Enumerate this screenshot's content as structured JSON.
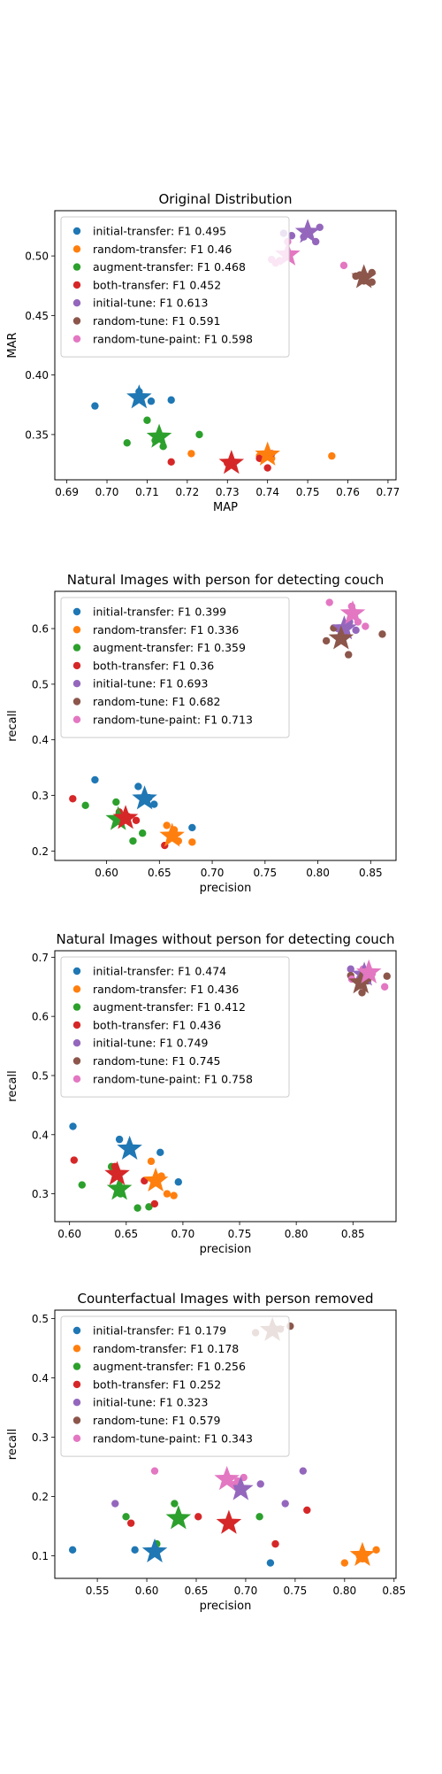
{
  "colors": [
    "#1f77b4",
    "#ff7f0e",
    "#2ca02c",
    "#d62728",
    "#9467bd",
    "#8c564b",
    "#e377c2"
  ],
  "chart_data": [
    {
      "type": "scatter",
      "title": "Original Distribution",
      "xlabel": "MAP",
      "ylabel": "MAR",
      "xlim": [
        0.687,
        0.772
      ],
      "ylim": [
        0.312,
        0.538
      ],
      "xticks": [
        0.69,
        0.7,
        0.71,
        0.72,
        0.73,
        0.74,
        0.75,
        0.76,
        0.77
      ],
      "xtick_labels": [
        "0.69",
        "0.70",
        "0.71",
        "0.72",
        "0.73",
        "0.74",
        "0.75",
        "0.76",
        "0.77"
      ],
      "yticks": [
        0.35,
        0.4,
        0.45,
        0.5
      ],
      "ytick_labels": [
        "0.35",
        "0.40",
        "0.45",
        "0.50"
      ],
      "legend_position": "upper-left",
      "series": [
        {
          "name": "initial-transfer: F1 0.495",
          "points": [
            [
              0.697,
              0.374
            ],
            [
              0.708,
              0.386
            ],
            [
              0.708,
              0.383
            ],
            [
              0.716,
              0.379
            ],
            [
              0.711,
              0.378
            ]
          ],
          "mean": [
            0.708,
            0.381
          ]
        },
        {
          "name": "random-transfer: F1 0.46",
          "points": [
            [
              0.721,
              0.334
            ],
            [
              0.74,
              0.334
            ],
            [
              0.741,
              0.33
            ],
            [
              0.756,
              0.332
            ],
            [
              0.738,
              0.332
            ]
          ],
          "mean": [
            0.74,
            0.333
          ]
        },
        {
          "name": "augment-transfer: F1 0.468",
          "points": [
            [
              0.705,
              0.343
            ],
            [
              0.71,
              0.362
            ],
            [
              0.714,
              0.34
            ],
            [
              0.723,
              0.35
            ],
            [
              0.712,
              0.345
            ]
          ],
          "mean": [
            0.713,
            0.348
          ]
        },
        {
          "name": "both-transfer: F1 0.452",
          "points": [
            [
              0.716,
              0.327
            ],
            [
              0.738,
              0.33
            ],
            [
              0.74,
              0.322
            ],
            [
              0.741,
              0.334
            ],
            [
              0.73,
              0.326
            ]
          ],
          "mean": [
            0.731,
            0.326
          ]
        },
        {
          "name": "initial-tune: F1 0.613",
          "points": [
            [
              0.744,
              0.519
            ],
            [
              0.753,
              0.524
            ],
            [
              0.752,
              0.512
            ],
            [
              0.749,
              0.516
            ],
            [
              0.746,
              0.517
            ]
          ],
          "mean": [
            0.75,
            0.52
          ]
        },
        {
          "name": "random-tune: F1 0.591",
          "points": [
            [
              0.764,
              0.479
            ],
            [
              0.766,
              0.478
            ],
            [
              0.762,
              0.483
            ],
            [
              0.766,
              0.486
            ],
            [
              0.763,
              0.484
            ]
          ],
          "mean": [
            0.764,
            0.482
          ]
        },
        {
          "name": "random-tune-paint: F1 0.598",
          "points": [
            [
              0.742,
              0.494
            ],
            [
              0.759,
              0.492
            ],
            [
              0.743,
              0.496
            ],
            [
              0.745,
              0.512
            ],
            [
              0.741,
              0.497
            ]
          ],
          "mean": [
            0.745,
            0.501
          ]
        }
      ]
    },
    {
      "type": "scatter",
      "title": "Natural Images with person for detecting couch",
      "xlabel": "precision",
      "ylabel": "recall",
      "xlim": [
        0.551,
        0.874
      ],
      "ylim": [
        0.183,
        0.667
      ],
      "xticks": [
        0.6,
        0.65,
        0.7,
        0.75,
        0.8,
        0.85
      ],
      "xtick_labels": [
        "0.60",
        "0.65",
        "0.70",
        "0.75",
        "0.80",
        "0.85"
      ],
      "yticks": [
        0.2,
        0.3,
        0.4,
        0.5,
        0.6
      ],
      "ytick_labels": [
        "0.2",
        "0.3",
        "0.4",
        "0.5",
        "0.6"
      ],
      "legend_position": "upper-left",
      "series": [
        {
          "name": "initial-transfer: F1 0.399",
          "points": [
            [
              0.589,
              0.328
            ],
            [
              0.63,
              0.316
            ],
            [
              0.645,
              0.284
            ],
            [
              0.681,
              0.242
            ],
            [
              0.64,
              0.296
            ]
          ],
          "mean": [
            0.636,
            0.294
          ]
        },
        {
          "name": "random-transfer: F1 0.336",
          "points": [
            [
              0.657,
              0.246
            ],
            [
              0.668,
              0.218
            ],
            [
              0.681,
              0.216
            ],
            [
              0.664,
              0.238
            ],
            [
              0.66,
              0.227
            ]
          ],
          "mean": [
            0.662,
            0.227
          ]
        },
        {
          "name": "augment-transfer: F1 0.359",
          "points": [
            [
              0.58,
              0.282
            ],
            [
              0.609,
              0.288
            ],
            [
              0.625,
              0.218
            ],
            [
              0.634,
              0.232
            ],
            [
              0.612,
              0.262
            ]
          ],
          "mean": [
            0.611,
            0.257
          ]
        },
        {
          "name": "both-transfer: F1 0.36",
          "points": [
            [
              0.568,
              0.294
            ],
            [
              0.612,
              0.27
            ],
            [
              0.628,
              0.255
            ],
            [
              0.655,
              0.21
            ],
            [
              0.62,
              0.262
            ]
          ],
          "mean": [
            0.618,
            0.259
          ]
        },
        {
          "name": "initial-tune: F1 0.693",
          "points": [
            [
              0.819,
              0.6
            ],
            [
              0.836,
              0.597
            ],
            [
              0.83,
              0.612
            ],
            [
              0.822,
              0.59
            ],
            [
              0.828,
              0.605
            ]
          ],
          "mean": [
            0.825,
            0.6
          ]
        },
        {
          "name": "random-tune: F1 0.682",
          "points": [
            [
              0.808,
              0.578
            ],
            [
              0.815,
              0.601
            ],
            [
              0.829,
              0.553
            ],
            [
              0.861,
              0.59
            ],
            [
              0.822,
              0.585
            ]
          ],
          "mean": [
            0.822,
            0.582
          ]
        },
        {
          "name": "random-tune-paint: F1 0.713",
          "points": [
            [
              0.811,
              0.647
            ],
            [
              0.845,
              0.604
            ],
            [
              0.832,
              0.64
            ],
            [
              0.838,
              0.612
            ],
            [
              0.833,
              0.627
            ]
          ],
          "mean": [
            0.833,
            0.627
          ]
        }
      ]
    },
    {
      "type": "scatter",
      "title": "Natural Images without person for detecting couch",
      "xlabel": "precision",
      "ylabel": "recall",
      "xlim": [
        0.587,
        0.888
      ],
      "ylim": [
        0.253,
        0.711
      ],
      "xticks": [
        0.6,
        0.65,
        0.7,
        0.75,
        0.8,
        0.85
      ],
      "xtick_labels": [
        "0.60",
        "0.65",
        "0.70",
        "0.75",
        "0.80",
        "0.85"
      ],
      "yticks": [
        0.3,
        0.4,
        0.5,
        0.6,
        0.7
      ],
      "ytick_labels": [
        "0.3",
        "0.4",
        "0.5",
        "0.6",
        "0.7"
      ],
      "legend_position": "upper-left",
      "series": [
        {
          "name": "initial-transfer: F1 0.474",
          "points": [
            [
              0.603,
              0.414
            ],
            [
              0.644,
              0.392
            ],
            [
              0.68,
              0.37
            ],
            [
              0.696,
              0.32
            ],
            [
              0.653,
              0.38
            ]
          ],
          "mean": [
            0.653,
            0.376
          ]
        },
        {
          "name": "random-transfer: F1 0.436",
          "points": [
            [
              0.672,
              0.355
            ],
            [
              0.686,
              0.3
            ],
            [
              0.692,
              0.297
            ],
            [
              0.681,
              0.33
            ],
            [
              0.676,
              0.322
            ]
          ],
          "mean": [
            0.676,
            0.322
          ]
        },
        {
          "name": "augment-transfer: F1 0.412",
          "points": [
            [
              0.611,
              0.315
            ],
            [
              0.637,
              0.346
            ],
            [
              0.66,
              0.276
            ],
            [
              0.67,
              0.278
            ],
            [
              0.645,
              0.3
            ]
          ],
          "mean": [
            0.644,
            0.308
          ]
        },
        {
          "name": "both-transfer: F1 0.436",
          "points": [
            [
              0.604,
              0.357
            ],
            [
              0.64,
              0.346
            ],
            [
              0.666,
              0.322
            ],
            [
              0.675,
              0.283
            ],
            [
              0.643,
              0.33
            ]
          ],
          "mean": [
            0.642,
            0.333
          ]
        },
        {
          "name": "initial-tune: F1 0.749",
          "points": [
            [
              0.848,
              0.68
            ],
            [
              0.866,
              0.672
            ],
            [
              0.856,
              0.664
            ],
            [
              0.862,
              0.676
            ],
            [
              0.858,
              0.668
            ]
          ],
          "mean": [
            0.86,
            0.67
          ]
        },
        {
          "name": "random-tune: F1 0.745",
          "points": [
            [
              0.848,
              0.669
            ],
            [
              0.858,
              0.64
            ],
            [
              0.863,
              0.66
            ],
            [
              0.88,
              0.668
            ],
            [
              0.856,
              0.652
            ]
          ],
          "mean": [
            0.857,
            0.657
          ]
        },
        {
          "name": "random-tune-paint: F1 0.758",
          "points": [
            [
              0.849,
              0.663
            ],
            [
              0.859,
              0.68
            ],
            [
              0.867,
              0.672
            ],
            [
              0.878,
              0.65
            ],
            [
              0.864,
              0.676
            ]
          ],
          "mean": [
            0.864,
            0.674
          ]
        }
      ]
    },
    {
      "type": "scatter",
      "title": "Counterfactual Images with person removed",
      "xlabel": "precision",
      "ylabel": "recall",
      "xlim": [
        0.507,
        0.852
      ],
      "ylim": [
        0.062,
        0.514
      ],
      "xticks": [
        0.55,
        0.6,
        0.65,
        0.7,
        0.75,
        0.8,
        0.85
      ],
      "xtick_labels": [
        "0.55",
        "0.60",
        "0.65",
        "0.70",
        "0.75",
        "0.80",
        "0.85"
      ],
      "yticks": [
        0.1,
        0.2,
        0.3,
        0.4,
        0.5
      ],
      "ytick_labels": [
        "0.1",
        "0.2",
        "0.3",
        "0.4",
        "0.5"
      ],
      "legend_position": "upper-left",
      "series": [
        {
          "name": "initial-transfer: F1 0.179",
          "points": [
            [
              0.525,
              0.11
            ],
            [
              0.588,
              0.11
            ],
            [
              0.61,
              0.12
            ],
            [
              0.725,
              0.088
            ],
            [
              0.608,
              0.107
            ]
          ],
          "mean": [
            0.608,
            0.107
          ]
        },
        {
          "name": "random-transfer: F1 0.178",
          "points": [
            [
              0.8,
              0.088
            ],
            [
              0.832,
              0.11
            ],
            [
              0.815,
              0.1
            ],
            [
              0.818,
              0.095
            ],
            [
              0.82,
              0.103
            ]
          ],
          "mean": [
            0.818,
            0.101
          ]
        },
        {
          "name": "augment-transfer: F1 0.256",
          "points": [
            [
              0.579,
              0.166
            ],
            [
              0.61,
              0.12
            ],
            [
              0.628,
              0.188
            ],
            [
              0.714,
              0.166
            ],
            [
              0.632,
              0.163
            ]
          ],
          "mean": [
            0.632,
            0.163
          ]
        },
        {
          "name": "both-transfer: F1 0.252",
          "points": [
            [
              0.584,
              0.155
            ],
            [
              0.652,
              0.166
            ],
            [
              0.73,
              0.12
            ],
            [
              0.762,
              0.177
            ],
            [
              0.683,
              0.155
            ]
          ],
          "mean": [
            0.683,
            0.155
          ]
        },
        {
          "name": "initial-tune: F1 0.323",
          "points": [
            [
              0.568,
              0.188
            ],
            [
              0.715,
              0.221
            ],
            [
              0.74,
              0.188
            ],
            [
              0.758,
              0.243
            ],
            [
              0.695,
              0.212
            ]
          ],
          "mean": [
            0.695,
            0.212
          ]
        },
        {
          "name": "random-tune: F1 0.579",
          "points": [
            [
              0.71,
              0.476
            ],
            [
              0.728,
              0.484
            ],
            [
              0.745,
              0.487
            ],
            [
              0.735,
              0.482
            ],
            [
              0.727,
              0.48
            ]
          ],
          "mean": [
            0.727,
            0.48
          ]
        },
        {
          "name": "random-tune-paint: F1 0.343",
          "points": [
            [
              0.608,
              0.243
            ],
            [
              0.698,
              0.232
            ],
            [
              0.688,
              0.22
            ],
            [
              0.692,
              0.226
            ],
            [
              0.681,
              0.229
            ]
          ],
          "mean": [
            0.681,
            0.229
          ]
        }
      ]
    }
  ]
}
